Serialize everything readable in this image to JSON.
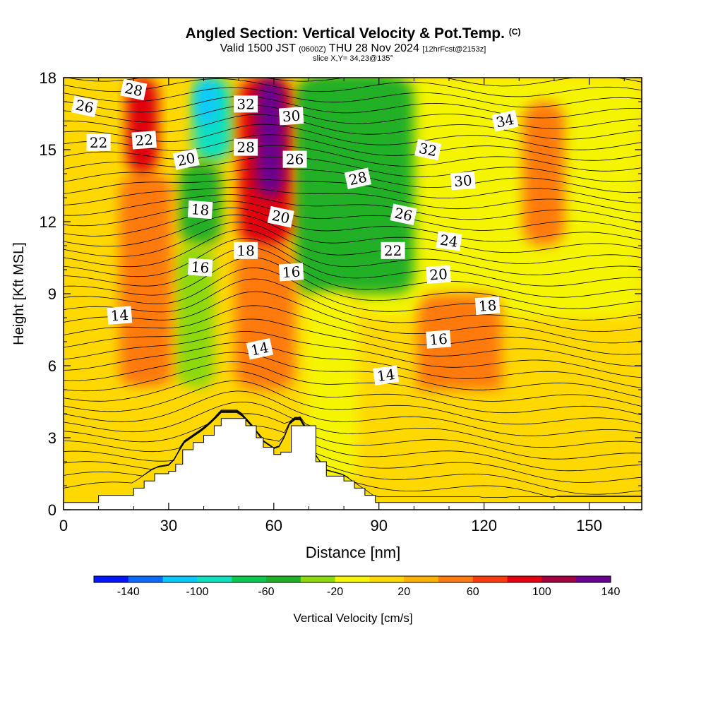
{
  "title": {
    "main": "Angled Section: Vertical Velocity & Pot.Temp.",
    "main_suffix": "(C)",
    "valid_a": "Valid 1500 JST",
    "valid_utc": "(0600Z)",
    "valid_b": "THU 28 Nov 2024",
    "forecast": "[12hrFcst@2153z]",
    "slice": "slice X,Y= 34,23@135°"
  },
  "chart_data": {
    "type": "heatmap",
    "xlabel": "Distance [nm]",
    "ylabel": "Height [Kft MSL]",
    "xlim": [
      0,
      165
    ],
    "ylim": [
      0,
      18
    ],
    "x_ticks": [
      "0",
      "30",
      "60",
      "90",
      "120",
      "150"
    ],
    "x_tick_values": [
      0,
      30,
      60,
      90,
      120,
      150
    ],
    "y_ticks": [
      "0",
      "3",
      "6",
      "9",
      "12",
      "15",
      "18"
    ],
    "y_tick_values": [
      0,
      3,
      6,
      9,
      12,
      15,
      18
    ],
    "terrain": {
      "x": [
        0,
        10,
        20,
        23,
        26,
        30,
        32,
        34,
        37,
        40,
        43,
        45,
        48,
        50,
        52,
        55,
        57,
        60,
        62,
        65,
        68,
        72,
        75,
        80,
        83,
        86,
        89,
        93,
        165
      ],
      "height": [
        0.3,
        0.6,
        0.9,
        1.2,
        1.5,
        1.6,
        1.9,
        2.5,
        2.8,
        3.1,
        3.5,
        3.8,
        3.8,
        3.8,
        3.5,
        3.0,
        2.6,
        2.3,
        2.4,
        3.5,
        3.5,
        2.0,
        1.4,
        1.2,
        0.9,
        0.6,
        0.3,
        0.3,
        0.3
      ]
    },
    "vertical_velocity_colorbar": {
      "label": "Vertical Velocity [cm/s]",
      "tick_labels": [
        "-140",
        "-100",
        "-60",
        "-20",
        "20",
        "60",
        "100",
        "140"
      ],
      "tick_values": [
        -140,
        -100,
        -60,
        -20,
        20,
        60,
        100,
        140
      ],
      "colors": [
        "#0016ff",
        "#0a6cff",
        "#0ac8ff",
        "#10e0c0",
        "#0cc850",
        "#20b028",
        "#8cd910",
        "#f5f505",
        "#ffd800",
        "#ffb000",
        "#ff7a10",
        "#ff3a10",
        "#e00010",
        "#a00040",
        "#6a0090"
      ]
    },
    "vertical_velocity_regions": [
      {
        "x": [
          0,
          165
        ],
        "z": [
          0,
          18
        ],
        "w": 0
      },
      {
        "x": [
          84,
          165
        ],
        "z": [
          8,
          18
        ],
        "w": -10
      },
      {
        "x": [
          66,
          100
        ],
        "z": [
          9,
          18
        ],
        "w": -45
      },
      {
        "x": [
          70,
          95
        ],
        "z": [
          11,
          18
        ],
        "w": -58
      },
      {
        "x": [
          37,
          48
        ],
        "z": [
          14.5,
          18
        ],
        "w": -95
      },
      {
        "x": [
          38,
          44
        ],
        "z": [
          16,
          18
        ],
        "w": -120
      },
      {
        "x": [
          33,
          45
        ],
        "z": [
          11,
          14.5
        ],
        "w": -60
      },
      {
        "x": [
          32,
          43
        ],
        "z": [
          5,
          11
        ],
        "w": -40
      },
      {
        "x": [
          16,
          31
        ],
        "z": [
          5,
          14
        ],
        "w": 45
      },
      {
        "x": [
          18,
          27
        ],
        "z": [
          14,
          18
        ],
        "w": 85
      },
      {
        "x": [
          49,
          66
        ],
        "z": [
          5,
          11
        ],
        "w": 55
      },
      {
        "x": [
          50,
          65
        ],
        "z": [
          11,
          18
        ],
        "w": 95
      },
      {
        "x": [
          55,
          63
        ],
        "z": [
          13,
          18
        ],
        "w": 130
      },
      {
        "x": [
          101,
          125
        ],
        "z": [
          3,
          9
        ],
        "w": 45
      },
      {
        "x": [
          131,
          143
        ],
        "z": [
          11,
          17
        ],
        "w": 40
      },
      {
        "x": [
          0,
          40
        ],
        "z": [
          0,
          5
        ],
        "w": 10
      },
      {
        "x": [
          92,
          165
        ],
        "z": [
          0,
          5
        ],
        "w": 10
      },
      {
        "x": [
          69,
          84
        ],
        "z": [
          1,
          9
        ],
        "w": -15
      }
    ],
    "potential_temperature_contours": {
      "unit": "C",
      "label_values": [
        14,
        14,
        14,
        16,
        16,
        16,
        18,
        18,
        18,
        20,
        20,
        20,
        22,
        22,
        22,
        24,
        26,
        26,
        26,
        28,
        28,
        28,
        30,
        30,
        32,
        32,
        34
      ],
      "labels": [
        {
          "text": "14",
          "x": 16,
          "z": 8.1
        },
        {
          "text": "14",
          "x": 56,
          "z": 6.7
        },
        {
          "text": "14",
          "x": 92,
          "z": 5.6
        },
        {
          "text": "16",
          "x": 39,
          "z": 10.1
        },
        {
          "text": "16",
          "x": 65,
          "z": 9.9
        },
        {
          "text": "16",
          "x": 107,
          "z": 7.1
        },
        {
          "text": "18",
          "x": 39,
          "z": 12.5
        },
        {
          "text": "18",
          "x": 52,
          "z": 10.8
        },
        {
          "text": "18",
          "x": 121,
          "z": 8.5
        },
        {
          "text": "20",
          "x": 35,
          "z": 14.6
        },
        {
          "text": "20",
          "x": 62,
          "z": 12.2
        },
        {
          "text": "20",
          "x": 107,
          "z": 9.8
        },
        {
          "text": "22",
          "x": 10,
          "z": 15.3
        },
        {
          "text": "22",
          "x": 23,
          "z": 15.4
        },
        {
          "text": "22",
          "x": 94,
          "z": 10.8
        },
        {
          "text": "24",
          "x": 110,
          "z": 11.2
        },
        {
          "text": "26",
          "x": 6,
          "z": 16.8
        },
        {
          "text": "26",
          "x": 66,
          "z": 14.6
        },
        {
          "text": "26",
          "x": 97,
          "z": 12.3
        },
        {
          "text": "28",
          "x": 20,
          "z": 17.5
        },
        {
          "text": "28",
          "x": 52,
          "z": 15.1
        },
        {
          "text": "28",
          "x": 84,
          "z": 13.8
        },
        {
          "text": "30",
          "x": 65,
          "z": 16.4
        },
        {
          "text": "30",
          "x": 114,
          "z": 13.7
        },
        {
          "text": "32",
          "x": 52,
          "z": 16.9
        },
        {
          "text": "32",
          "x": 104,
          "z": 15.0
        },
        {
          "text": "34",
          "x": 126,
          "z": 16.2
        }
      ]
    }
  }
}
